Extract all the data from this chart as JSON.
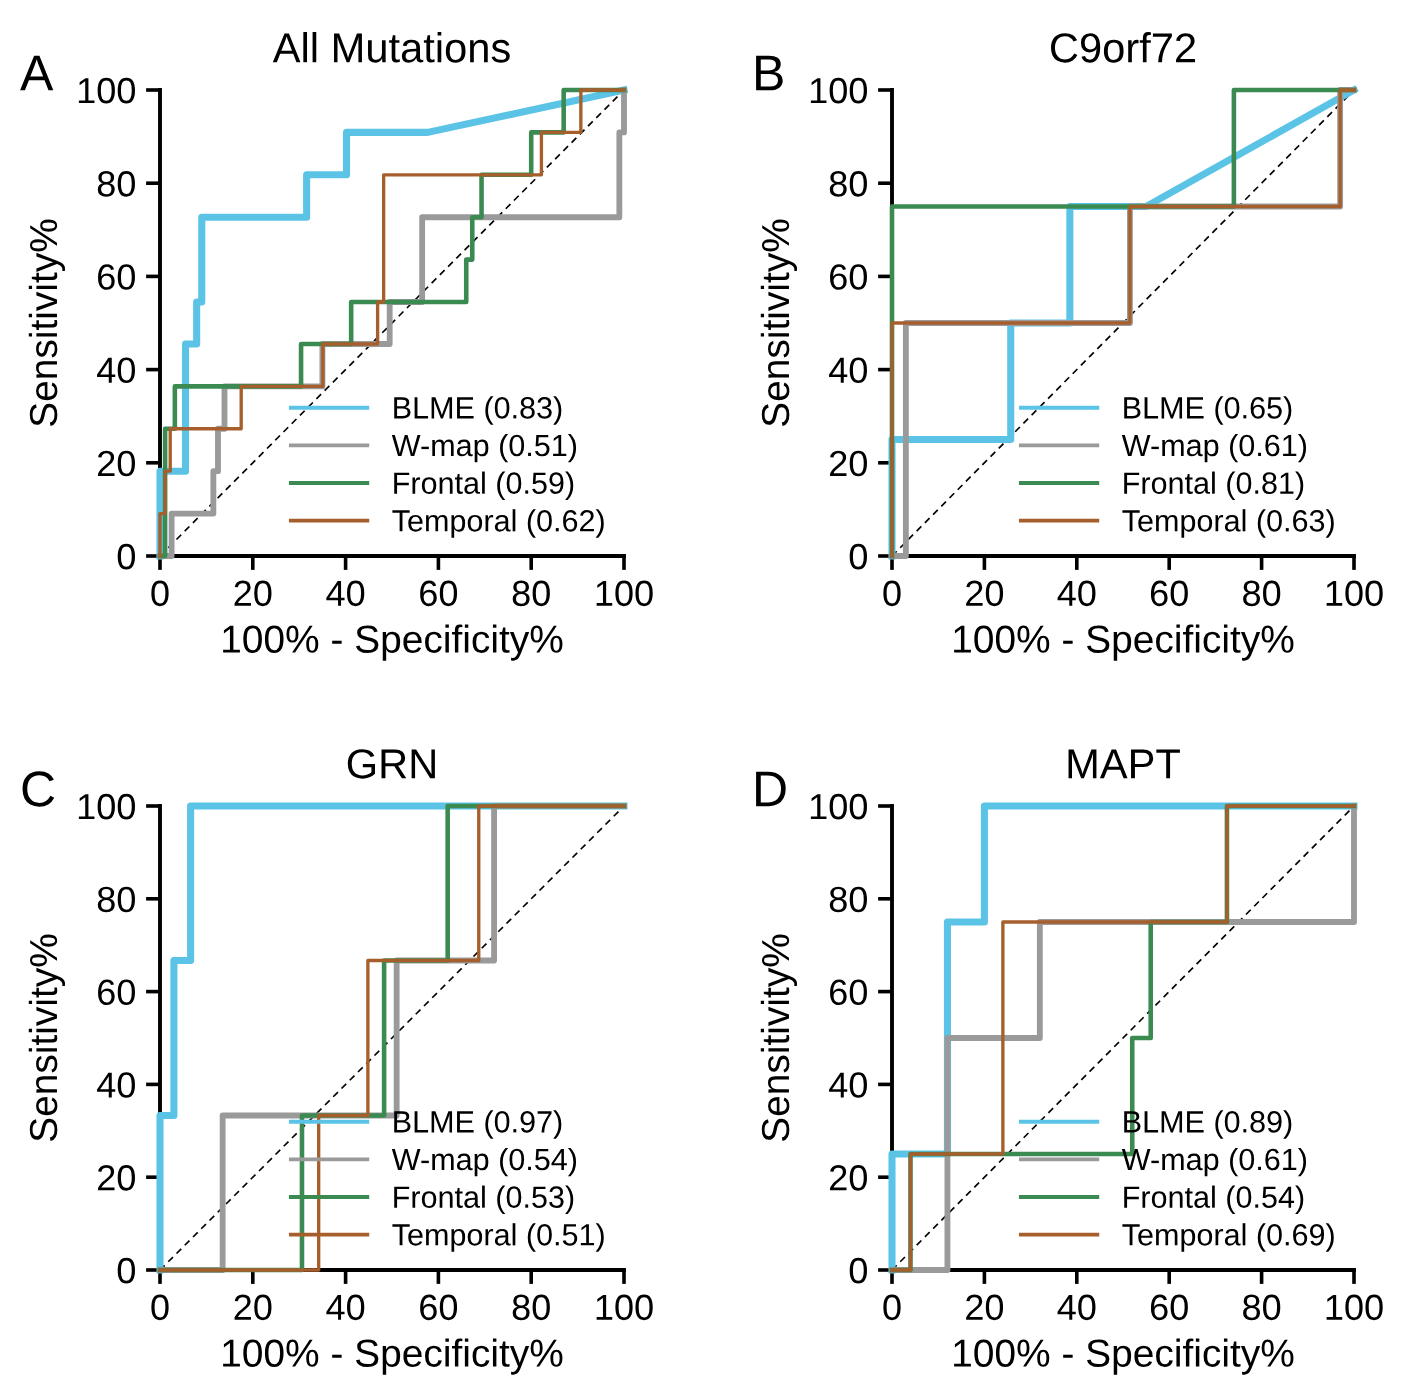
{
  "chart_data": [
    {
      "type": "line",
      "title": "All Mutations",
      "xlabel": "100% - Specificity%",
      "ylabel": "Sensitivity%",
      "annotations": [
        "A"
      ],
      "xlim": [
        0,
        100
      ],
      "ylim": [
        0,
        100
      ],
      "xticks": [
        0,
        20,
        40,
        60,
        80,
        100
      ],
      "yticks": [
        0,
        20,
        40,
        60,
        80,
        100
      ],
      "grid": false,
      "legend": "bottom right",
      "marker": "none",
      "line_style": "solid",
      "series": [
        {
          "color": "#000000",
          "line_style": "dashed",
          "x": [
            0,
            100
          ],
          "values": [
            0,
            100
          ]
        },
        {
          "name": "BLME (0.83)",
          "color": "#5bc4e6",
          "x": [
            0,
            0,
            5.5,
            5.5,
            7.9,
            7.9,
            9,
            9,
            31.6,
            31.6,
            40.2,
            40.2,
            57.7,
            100
          ],
          "values": [
            0,
            18.2,
            18.2,
            45.5,
            45.5,
            54.5,
            54.5,
            72.7,
            72.7,
            81.8,
            81.8,
            90.9,
            90.9,
            100
          ]
        },
        {
          "name": "W-map (0.51)",
          "color": "#9a9a9a",
          "x": [
            0,
            2.5,
            2.5,
            11.5,
            11.5,
            12.5,
            12.5,
            13.9,
            13.9,
            35,
            35,
            49.5,
            49.5,
            56.5,
            56.5,
            99,
            99,
            100,
            100
          ],
          "values": [
            0,
            0,
            9.1,
            9.1,
            18.2,
            18.2,
            27.3,
            27.3,
            36.4,
            36.4,
            45.5,
            45.5,
            54.5,
            54.5,
            72.7,
            72.7,
            90.9,
            90.9,
            100
          ]
        },
        {
          "name": "Frontal (0.59)",
          "color": "#3b8a52",
          "x": [
            0,
            1.1,
            1.1,
            3.2,
            3.2,
            30.4,
            30.4,
            41.2,
            41.2,
            66,
            66,
            67.3,
            67.3,
            69.3,
            69.3,
            80,
            80,
            87,
            87,
            100
          ],
          "values": [
            0,
            0,
            27.3,
            27.3,
            36.4,
            36.4,
            45.5,
            45.5,
            54.5,
            54.5,
            63.6,
            63.6,
            72.7,
            72.7,
            81.8,
            81.8,
            90.9,
            90.9,
            100,
            100
          ]
        },
        {
          "name": "Temporal (0.62)",
          "color": "#a65f2c",
          "x": [
            0,
            0,
            1.1,
            1.1,
            2.2,
            2.2,
            17.5,
            17.5,
            35.1,
            35.1,
            46.9,
            46.9,
            48.2,
            48.2,
            82.2,
            82.2,
            90.7,
            90.7,
            100
          ],
          "values": [
            0,
            9.1,
            9.1,
            18.2,
            18.2,
            27.3,
            27.3,
            36.4,
            36.4,
            45.5,
            45.5,
            54.5,
            54.5,
            81.8,
            81.8,
            90.9,
            90.9,
            100,
            100
          ]
        }
      ]
    },
    {
      "type": "line",
      "title": "C9orf72",
      "xlabel": "100% - Specificity%",
      "ylabel": "Sensitivity%",
      "annotations": [
        "B"
      ],
      "xlim": [
        0,
        100
      ],
      "ylim": [
        0,
        100
      ],
      "xticks": [
        0,
        20,
        40,
        60,
        80,
        100
      ],
      "yticks": [
        0,
        20,
        40,
        60,
        80,
        100
      ],
      "grid": false,
      "legend": "bottom right",
      "marker": "none",
      "line_style": "solid",
      "series": [
        {
          "color": "#000000",
          "line_style": "dashed",
          "x": [
            0,
            100
          ],
          "values": [
            0,
            100
          ]
        },
        {
          "name": "BLME (0.65)",
          "color": "#5bc4e6",
          "x": [
            0,
            0,
            25.7,
            25.7,
            38.5,
            38.5,
            55,
            100
          ],
          "values": [
            0,
            25,
            25,
            50,
            50,
            75,
            75,
            100
          ]
        },
        {
          "name": "W-map (0.61)",
          "color": "#9a9a9a",
          "x": [
            0,
            3,
            3,
            51.5,
            51.5,
            97,
            97,
            100
          ],
          "values": [
            0,
            0,
            50,
            50,
            75,
            75,
            100,
            100
          ]
        },
        {
          "name": "Frontal (0.81)",
          "color": "#3b8a52",
          "x": [
            0,
            0,
            74,
            74,
            100
          ],
          "values": [
            0,
            75,
            75,
            100,
            100
          ]
        },
        {
          "name": "Temporal (0.63)",
          "color": "#a65f2c",
          "x": [
            0,
            0,
            51.5,
            51.5,
            97,
            97,
            100
          ],
          "values": [
            0,
            50,
            50,
            75,
            75,
            100,
            100
          ]
        }
      ]
    },
    {
      "type": "line",
      "title": "GRN",
      "xlabel": "100% - Specificity%",
      "ylabel": "Sensitivity%",
      "annotations": [
        "C"
      ],
      "xlim": [
        0,
        100
      ],
      "ylim": [
        0,
        100
      ],
      "xticks": [
        0,
        20,
        40,
        60,
        80,
        100
      ],
      "yticks": [
        0,
        20,
        40,
        60,
        80,
        100
      ],
      "grid": false,
      "legend": "bottom right",
      "marker": "none",
      "line_style": "solid",
      "series": [
        {
          "color": "#000000",
          "line_style": "dashed",
          "x": [
            0,
            100
          ],
          "values": [
            0,
            100
          ]
        },
        {
          "name": "BLME (0.97)",
          "color": "#5bc4e6",
          "x": [
            0,
            0,
            3,
            3,
            6.6,
            6.6,
            100
          ],
          "values": [
            0,
            33.3,
            33.3,
            66.7,
            66.7,
            100,
            100
          ]
        },
        {
          "name": "W-map (0.54)",
          "color": "#9a9a9a",
          "x": [
            0,
            13.5,
            13.5,
            51,
            51,
            72,
            72,
            100
          ],
          "values": [
            0,
            0,
            33.3,
            33.3,
            66.7,
            66.7,
            100,
            100
          ]
        },
        {
          "name": "Frontal (0.53)",
          "color": "#3b8a52",
          "x": [
            0,
            30.6,
            30.6,
            48.3,
            48.3,
            62,
            62,
            100
          ],
          "values": [
            0,
            0,
            33.3,
            33.3,
            66.7,
            66.7,
            100,
            100
          ]
        },
        {
          "name": "Temporal (0.51)",
          "color": "#a65f2c",
          "x": [
            0,
            34.2,
            34.2,
            44.8,
            44.8,
            68.7,
            68.7,
            100
          ],
          "values": [
            0,
            0,
            33.3,
            33.3,
            66.7,
            66.7,
            100,
            100
          ]
        }
      ]
    },
    {
      "type": "line",
      "title": "MAPT",
      "xlabel": "100% - Specificity%",
      "ylabel": "Sensitivity%",
      "annotations": [
        "D"
      ],
      "xlim": [
        0,
        100
      ],
      "ylim": [
        0,
        100
      ],
      "xticks": [
        0,
        20,
        40,
        60,
        80,
        100
      ],
      "yticks": [
        0,
        20,
        40,
        60,
        80,
        100
      ],
      "grid": false,
      "legend": "bottom right",
      "marker": "none",
      "line_style": "solid",
      "series": [
        {
          "color": "#000000",
          "line_style": "dashed",
          "x": [
            0,
            100
          ],
          "values": [
            0,
            100
          ]
        },
        {
          "name": "BLME (0.89)",
          "color": "#5bc4e6",
          "x": [
            0,
            0,
            12,
            12,
            20,
            20,
            100
          ],
          "values": [
            0,
            25,
            25,
            75,
            75,
            100,
            100
          ]
        },
        {
          "name": "W-map (0.61)",
          "color": "#9a9a9a",
          "x": [
            0,
            12,
            12,
            32,
            32,
            100,
            100
          ],
          "values": [
            0,
            0,
            50,
            50,
            75,
            75,
            100
          ]
        },
        {
          "name": "Frontal (0.54)",
          "color": "#3b8a52",
          "x": [
            0,
            4,
            4,
            52,
            52,
            56,
            56,
            72.5,
            72.5,
            100
          ],
          "values": [
            0,
            0,
            25,
            25,
            50,
            50,
            75,
            75,
            100,
            100
          ]
        },
        {
          "name": "Temporal (0.69)",
          "color": "#a65f2c",
          "x": [
            0,
            4,
            4,
            24,
            24,
            72.5,
            72.5,
            100
          ],
          "values": [
            0,
            0,
            25,
            25,
            75,
            75,
            100,
            100
          ]
        }
      ]
    }
  ]
}
